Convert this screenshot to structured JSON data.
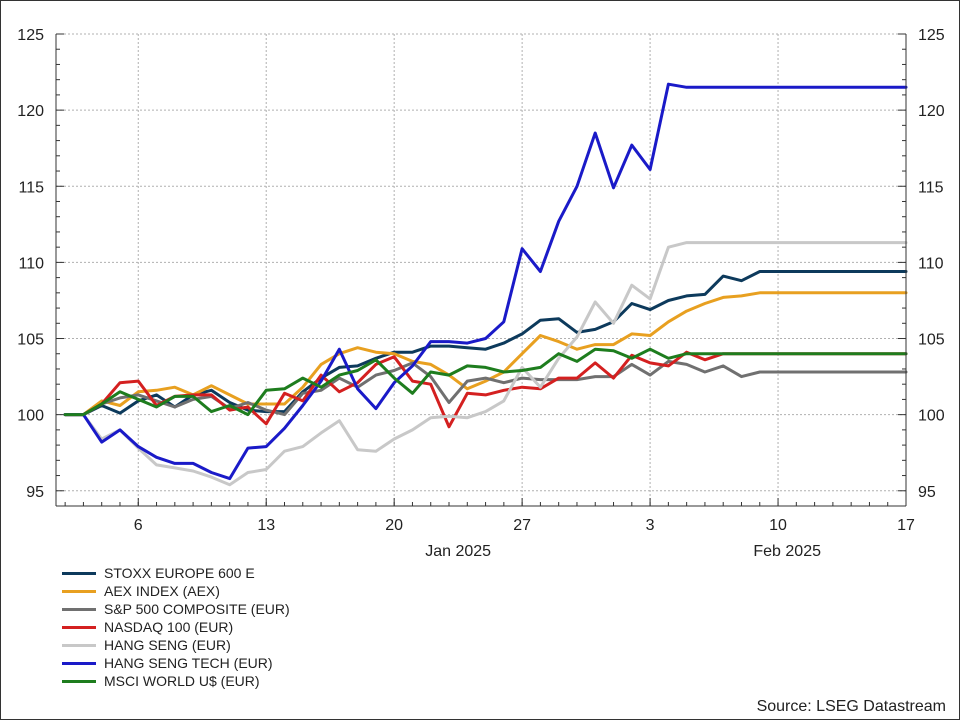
{
  "chart_data": {
    "type": "line",
    "title": "",
    "xlabel": "",
    "ylabel": "",
    "ylim": [
      94,
      125
    ],
    "yticks": [
      95,
      100,
      105,
      110,
      115,
      120,
      125
    ],
    "dual_y_axis": true,
    "grid": true,
    "legend_position": "bottom-left",
    "x_day_ticks": [
      {
        "x": 6,
        "label": "6"
      },
      {
        "x": 13,
        "label": "13"
      },
      {
        "x": 20,
        "label": "20"
      },
      {
        "x": 27,
        "label": "27"
      },
      {
        "x": 34,
        "label": "3"
      },
      {
        "x": 41,
        "label": "10"
      },
      {
        "x": 48,
        "label": "17"
      }
    ],
    "x_month_labels": [
      {
        "x": 23.5,
        "label": "Jan 2025"
      },
      {
        "x": 41.5,
        "label": "Feb 2025"
      }
    ],
    "xlim": [
      1.5,
      48
    ],
    "x": [
      2,
      3,
      4,
      5,
      6,
      7,
      8,
      9,
      10,
      11,
      12,
      13,
      14,
      15,
      16,
      17,
      18,
      19,
      20,
      21,
      22,
      23,
      24,
      25,
      26,
      27,
      28,
      29,
      30,
      31,
      32,
      33,
      34,
      35,
      36,
      37,
      38,
      39,
      40,
      41,
      42,
      43,
      44,
      45,
      46,
      47,
      48
    ],
    "series": [
      {
        "name": "STOXX EUROPE 600 E",
        "color": "#0d3a5c",
        "values": [
          100,
          100,
          100.6,
          100.1,
          100.9,
          101.3,
          100.5,
          101.3,
          101.6,
          100.8,
          100.3,
          100.2,
          100.2,
          101.5,
          102.4,
          103.1,
          103.2,
          103.7,
          104.1,
          104.1,
          104.5,
          104.5,
          104.4,
          104.3,
          104.7,
          105.3,
          106.2,
          106.3,
          105.4,
          105.6,
          106.1,
          107.3,
          106.9,
          107.5,
          107.8,
          107.9,
          109.1,
          108.8,
          109.4,
          109.4,
          109.4,
          109.4,
          109.4,
          109.4,
          109.4,
          109.4,
          109.4
        ]
      },
      {
        "name": "AEX INDEX (AEX)",
        "color": "#e8a020",
        "values": [
          100,
          100,
          100.9,
          100.6,
          101.5,
          101.6,
          101.8,
          101.3,
          101.9,
          101.3,
          100.7,
          100.7,
          100.7,
          101.8,
          103.3,
          104.0,
          104.4,
          104.1,
          104.0,
          103.5,
          103.3,
          102.6,
          101.7,
          102.2,
          102.8,
          104.0,
          105.2,
          104.8,
          104.3,
          104.6,
          104.6,
          105.3,
          105.2,
          106.1,
          106.8,
          107.3,
          107.7,
          107.8,
          108.0,
          108.0,
          108.0,
          108.0,
          108.0,
          108.0,
          108.0,
          108.0,
          108.0
        ]
      },
      {
        "name": "S&P 500 COMPOSITE (EUR)",
        "color": "#707070",
        "values": [
          100,
          100,
          100.7,
          101.1,
          101.3,
          100.9,
          100.5,
          101.0,
          101.2,
          100.4,
          100.8,
          100.3,
          100.0,
          101.4,
          101.6,
          102.4,
          101.8,
          102.6,
          102.9,
          103.4,
          102.5,
          100.8,
          102.2,
          102.4,
          102.1,
          102.4,
          102.3,
          102.3,
          102.3,
          102.5,
          102.5,
          103.3,
          102.6,
          103.5,
          103.3,
          102.8,
          103.2,
          102.5,
          102.8,
          102.8,
          102.8,
          102.8,
          102.8,
          102.8,
          102.8,
          102.8,
          102.8
        ]
      },
      {
        "name": "NASDAQ 100 (EUR)",
        "color": "#d42020",
        "values": [
          100,
          100,
          100.7,
          102.1,
          102.2,
          100.6,
          101.2,
          101.3,
          101.3,
          100.3,
          100.5,
          99.4,
          101.4,
          100.9,
          102.6,
          101.5,
          102.1,
          103.3,
          103.8,
          102.2,
          102.0,
          99.2,
          101.4,
          101.3,
          101.6,
          101.8,
          101.7,
          102.4,
          102.4,
          103.4,
          102.4,
          103.9,
          103.4,
          103.2,
          104.1,
          103.6,
          104.0,
          104.0,
          104.0,
          104.0,
          104.0,
          104.0,
          104.0,
          104.0,
          104.0,
          104.0,
          104.0
        ]
      },
      {
        "name": "HANG SENG (EUR)",
        "color": "#c8c8c8",
        "values": [
          100,
          100,
          98.4,
          99.0,
          97.8,
          96.7,
          96.5,
          96.3,
          95.9,
          95.4,
          96.2,
          96.4,
          97.6,
          97.9,
          98.8,
          99.6,
          97.7,
          97.6,
          98.4,
          99.0,
          99.8,
          99.9,
          99.8,
          100.2,
          100.9,
          103.1,
          101.8,
          103.7,
          105.1,
          107.4,
          106.0,
          108.5,
          107.6,
          111.0,
          111.3,
          111.3,
          111.3,
          111.3,
          111.3,
          111.3,
          111.3,
          111.3,
          111.3,
          111.3,
          111.3,
          111.3,
          111.3
        ]
      },
      {
        "name": "HANG SENG TECH (EUR)",
        "color": "#1a1ac8",
        "values": [
          100,
          100,
          98.2,
          99.0,
          97.9,
          97.2,
          96.8,
          96.8,
          96.2,
          95.8,
          97.8,
          97.9,
          99.1,
          100.6,
          102.2,
          104.3,
          101.7,
          100.4,
          102.1,
          103.2,
          104.8,
          104.8,
          104.7,
          105.0,
          106.1,
          110.9,
          109.4,
          112.7,
          115.0,
          118.5,
          114.9,
          117.7,
          116.1,
          121.7,
          121.5,
          121.5,
          121.5,
          121.5,
          121.5,
          121.5,
          121.5,
          121.5,
          121.5,
          121.5,
          121.5,
          121.5,
          121.5
        ]
      },
      {
        "name": "MSCI WORLD U$ (EUR)",
        "color": "#1e7d1e",
        "values": [
          100,
          100,
          100.7,
          101.5,
          101.0,
          100.5,
          101.2,
          101.2,
          100.2,
          100.6,
          100.0,
          101.6,
          101.7,
          102.4,
          101.8,
          102.6,
          102.9,
          103.6,
          102.4,
          101.4,
          102.8,
          102.6,
          103.2,
          103.1,
          102.8,
          102.9,
          103.1,
          104.0,
          103.5,
          104.3,
          104.2,
          103.7,
          104.3,
          103.7,
          104.0,
          104.0,
          104.0,
          104.0,
          104.0,
          104.0,
          104.0,
          104.0,
          104.0,
          104.0,
          104.0,
          104.0,
          104.0
        ]
      }
    ]
  },
  "source": "Source: LSEG Datastream"
}
